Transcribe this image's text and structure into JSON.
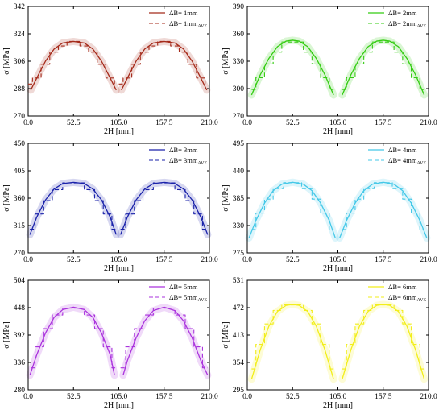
{
  "chart_data": [
    {
      "type": "line",
      "xlabel": "2H [mm]",
      "ylabel": "σ [MPa]",
      "xlim": [
        0,
        210
      ],
      "ylim": [
        270,
        342
      ],
      "xticks": [
        "0.0",
        "52.5",
        "105.0",
        "157.5",
        "210.0"
      ],
      "yticks": [
        "270",
        "288",
        "306",
        "324",
        "342"
      ],
      "color": "#a52a1a",
      "legend": {
        "solid": "ΔB= 1mm",
        "dashed_main": "ΔB= 1mm",
        "dashed_sub": "AVE"
      },
      "legend_position": "top-right",
      "series": [
        {
          "style": "solid",
          "x": [
            3,
            10,
            20,
            30,
            40,
            52.5,
            65,
            75,
            85,
            95,
            102
          ],
          "values": [
            287,
            295,
            306,
            314,
            318,
            319,
            318,
            314,
            306,
            295,
            287
          ]
        },
        {
          "style": "solid",
          "x": [
            108,
            115,
            125,
            135,
            145,
            157.5,
            170,
            180,
            190,
            200,
            207
          ],
          "values": [
            287,
            295,
            306,
            314,
            318,
            319,
            318,
            314,
            306,
            295,
            287
          ]
        },
        {
          "style": "dashed",
          "x": [
            0,
            5,
            5,
            15,
            15,
            25,
            25,
            35,
            35,
            45,
            45,
            60,
            60,
            70,
            70,
            80,
            80,
            90,
            90,
            100,
            100
          ],
          "values": [
            291,
            291,
            295,
            295,
            304,
            304,
            312,
            312,
            316,
            316,
            319,
            319,
            316,
            316,
            312,
            312,
            304,
            304,
            295,
            295,
            290
          ]
        },
        {
          "style": "dashed",
          "x": [
            105,
            110,
            110,
            120,
            120,
            130,
            130,
            140,
            140,
            150,
            150,
            165,
            165,
            175,
            175,
            185,
            185,
            195,
            195,
            205,
            205
          ],
          "values": [
            291,
            291,
            295,
            295,
            304,
            304,
            312,
            312,
            316,
            316,
            319,
            319,
            316,
            316,
            312,
            312,
            304,
            304,
            295,
            295,
            290
          ]
        }
      ]
    },
    {
      "type": "line",
      "xlabel": "2H [mm]",
      "ylabel": "σ [MPa]",
      "xlim": [
        0,
        210
      ],
      "ylim": [
        270,
        390
      ],
      "xticks": [
        "0.0",
        "52.5",
        "105.0",
        "157.5",
        "210.0"
      ],
      "yticks": [
        "270",
        "300",
        "330",
        "360",
        "390"
      ],
      "color": "#33cc11",
      "legend": {
        "solid": "ΔB= 2mm",
        "dashed_main": "ΔB= 2mm",
        "dashed_sub": "AVE"
      },
      "legend_position": "top-right",
      "series": [
        {
          "style": "solid",
          "x": [
            5,
            15,
            25,
            35,
            45,
            52.5,
            60,
            70,
            80,
            90,
            100
          ],
          "values": [
            293,
            315,
            333,
            346,
            352,
            353,
            352,
            346,
            333,
            315,
            293
          ]
        },
        {
          "style": "solid",
          "x": [
            110,
            120,
            130,
            140,
            150,
            157.5,
            165,
            175,
            185,
            195,
            205
          ],
          "values": [
            293,
            315,
            333,
            346,
            352,
            353,
            352,
            346,
            333,
            315,
            293
          ]
        },
        {
          "style": "dashed",
          "x": [
            5,
            10,
            10,
            20,
            20,
            30,
            30,
            40,
            40,
            65,
            65,
            75,
            75,
            85,
            85,
            95,
            95,
            100
          ],
          "values": [
            299,
            299,
            312,
            312,
            327,
            327,
            340,
            340,
            351,
            351,
            340,
            340,
            327,
            327,
            312,
            312,
            299,
            299
          ]
        },
        {
          "style": "dashed",
          "x": [
            110,
            115,
            115,
            125,
            125,
            135,
            135,
            145,
            145,
            170,
            170,
            180,
            180,
            190,
            190,
            200,
            200,
            205
          ],
          "values": [
            299,
            299,
            312,
            312,
            327,
            327,
            340,
            340,
            351,
            351,
            340,
            340,
            327,
            327,
            312,
            312,
            299,
            299
          ]
        }
      ]
    },
    {
      "type": "line",
      "xlabel": "2H [mm]",
      "ylabel": "σ [MPa]",
      "xlim": [
        0,
        210
      ],
      "ylim": [
        270,
        450
      ],
      "xticks": [
        "0.0",
        "52.5",
        "105.0",
        "157.5",
        "210.0"
      ],
      "yticks": [
        "270",
        "315",
        "360",
        "405",
        "450"
      ],
      "color": "#1a22aa",
      "legend": {
        "solid": "ΔB= 3mm",
        "dashed_main": "ΔB= 3mm",
        "dashed_sub": "AVE"
      },
      "legend_position": "top-right",
      "series": [
        {
          "style": "solid",
          "x": [
            2,
            10,
            20,
            30,
            40,
            52.5,
            65,
            75,
            85,
            95,
            102
          ],
          "values": [
            300,
            329,
            357,
            375,
            384,
            386,
            384,
            375,
            357,
            329,
            300
          ]
        },
        {
          "style": "solid",
          "x": [
            107,
            115,
            125,
            135,
            145,
            157.5,
            170,
            180,
            190,
            200,
            208
          ],
          "values": [
            300,
            329,
            357,
            375,
            384,
            386,
            384,
            375,
            357,
            329,
            300
          ]
        },
        {
          "style": "dashed",
          "x": [
            2,
            8,
            8,
            18,
            18,
            28,
            28,
            40,
            40,
            65,
            65,
            77,
            77,
            87,
            87,
            97,
            97,
            103
          ],
          "values": [
            309,
            309,
            334,
            334,
            356,
            356,
            374,
            374,
            385,
            385,
            374,
            374,
            356,
            356,
            334,
            334,
            309,
            309
          ]
        },
        {
          "style": "dashed",
          "x": [
            107,
            113,
            113,
            123,
            123,
            133,
            133,
            145,
            145,
            170,
            170,
            182,
            182,
            192,
            192,
            202,
            202,
            208
          ],
          "values": [
            309,
            309,
            334,
            334,
            356,
            356,
            374,
            374,
            385,
            385,
            374,
            374,
            356,
            356,
            334,
            334,
            309,
            309
          ]
        }
      ]
    },
    {
      "type": "line",
      "xlabel": "2H [mm]",
      "ylabel": "σ [MPa]",
      "xlim": [
        0,
        210
      ],
      "ylim": [
        275,
        495
      ],
      "xticks": [
        "0.0",
        "52.5",
        "105.0",
        "157.5",
        "210.0"
      ],
      "yticks": [
        "275",
        "330",
        "385",
        "440",
        "495"
      ],
      "color": "#44c8e8",
      "legend": {
        "solid": "ΔB= 4mm",
        "dashed_main": "ΔB= 4mm",
        "dashed_sub": "AVE"
      },
      "legend_position": "top-right",
      "series": [
        {
          "style": "solid",
          "x": [
            2,
            10,
            20,
            30,
            40,
            52.5,
            65,
            75,
            85,
            95,
            102
          ],
          "values": [
            305,
            340,
            375,
            400,
            413,
            417,
            413,
            400,
            375,
            340,
            305
          ]
        },
        {
          "style": "solid",
          "x": [
            107,
            115,
            125,
            135,
            145,
            157.5,
            170,
            180,
            190,
            200,
            208
          ],
          "values": [
            305,
            340,
            375,
            400,
            413,
            417,
            413,
            400,
            375,
            340,
            305
          ]
        },
        {
          "style": "dashed",
          "x": [
            5,
            10,
            10,
            20,
            20,
            30,
            30,
            42,
            42,
            63,
            63,
            75,
            75,
            85,
            85,
            95,
            95,
            100
          ],
          "values": [
            322,
            322,
            355,
            355,
            383,
            383,
            404,
            404,
            416,
            416,
            404,
            404,
            383,
            383,
            355,
            355,
            322,
            322
          ]
        },
        {
          "style": "dashed",
          "x": [
            110,
            115,
            115,
            125,
            125,
            135,
            135,
            147,
            147,
            168,
            168,
            180,
            180,
            190,
            190,
            200,
            200,
            205
          ],
          "values": [
            322,
            322,
            355,
            355,
            383,
            383,
            404,
            404,
            416,
            416,
            404,
            404,
            383,
            383,
            355,
            355,
            322,
            322
          ]
        }
      ]
    },
    {
      "type": "line",
      "xlabel": "2H [mm]",
      "ylabel": "σ [MPa]",
      "xlim": [
        0,
        210
      ],
      "ylim": [
        280,
        504
      ],
      "xticks": [
        "0.0",
        "52.5",
        "105.0",
        "157.5",
        "210.0"
      ],
      "yticks": [
        "280",
        "336",
        "392",
        "448",
        "504"
      ],
      "color": "#aa33dd",
      "legend": {
        "solid": "ΔB= 5mm",
        "dashed_main": "ΔB= 5mm",
        "dashed_sub": "AVE"
      },
      "legend_position": "top-right",
      "series": [
        {
          "style": "solid",
          "x": [
            2,
            10,
            20,
            30,
            40,
            52.5,
            65,
            75,
            85,
            95,
            100
          ],
          "values": [
            310,
            352,
            396,
            428,
            444,
            449,
            444,
            428,
            396,
            352,
            310
          ]
        },
        {
          "style": "solid",
          "x": [
            110,
            115,
            125,
            135,
            145,
            157.5,
            170,
            180,
            190,
            200,
            208
          ],
          "values": [
            310,
            340,
            386,
            421,
            442,
            449,
            442,
            421,
            386,
            340,
            310
          ]
        },
        {
          "style": "dashed",
          "x": [
            3,
            8,
            8,
            18,
            18,
            28,
            28,
            40,
            40,
            65,
            65,
            77,
            77,
            87,
            87,
            97,
            97,
            103
          ],
          "values": [
            325,
            325,
            368,
            368,
            405,
            405,
            433,
            433,
            447,
            447,
            433,
            433,
            405,
            405,
            368,
            368,
            325,
            325
          ]
        },
        {
          "style": "dashed",
          "x": [
            107,
            113,
            113,
            123,
            123,
            133,
            133,
            145,
            145,
            170,
            170,
            182,
            182,
            192,
            192,
            202,
            202,
            208
          ],
          "values": [
            325,
            325,
            368,
            368,
            405,
            405,
            433,
            433,
            447,
            447,
            433,
            433,
            405,
            405,
            368,
            368,
            325,
            325
          ]
        }
      ]
    },
    {
      "type": "line",
      "xlabel": "2H [mm]",
      "ylabel": "σ [MPa]",
      "xlim": [
        0,
        210
      ],
      "ylim": [
        295,
        531
      ],
      "xticks": [
        "0.0",
        "52.5",
        "105.0",
        "157.5",
        "210.0"
      ],
      "yticks": [
        "295",
        "354",
        "413",
        "472",
        "531"
      ],
      "color": "#f2ee1a",
      "legend": {
        "solid": "ΔB= 6mm",
        "dashed_main": "ΔB= 6mm",
        "dashed_sub": "AVE"
      },
      "legend_position": "top-right",
      "series": [
        {
          "style": "solid",
          "x": [
            5,
            15,
            25,
            35,
            45,
            52.5,
            60,
            70,
            80,
            90,
            100
          ],
          "values": [
            318,
            381,
            432,
            464,
            477,
            479,
            477,
            464,
            432,
            381,
            318
          ]
        },
        {
          "style": "solid",
          "x": [
            110,
            120,
            130,
            140,
            150,
            157.5,
            165,
            175,
            185,
            195,
            205
          ],
          "values": [
            318,
            381,
            432,
            464,
            477,
            479,
            477,
            464,
            432,
            381,
            318
          ]
        },
        {
          "style": "dashed",
          "x": [
            5,
            10,
            10,
            20,
            20,
            30,
            30,
            40,
            40,
            65,
            65,
            75,
            75,
            85,
            85,
            95,
            95,
            100
          ],
          "values": [
            340,
            340,
            393,
            393,
            437,
            437,
            466,
            466,
            478,
            478,
            466,
            466,
            437,
            437,
            393,
            393,
            340,
            340
          ]
        },
        {
          "style": "dashed",
          "x": [
            110,
            115,
            115,
            125,
            125,
            135,
            135,
            145,
            145,
            170,
            170,
            180,
            180,
            190,
            190,
            200,
            200,
            205
          ],
          "values": [
            340,
            340,
            393,
            393,
            437,
            437,
            466,
            466,
            478,
            478,
            466,
            466,
            437,
            437,
            393,
            393,
            340,
            340
          ]
        }
      ]
    }
  ]
}
